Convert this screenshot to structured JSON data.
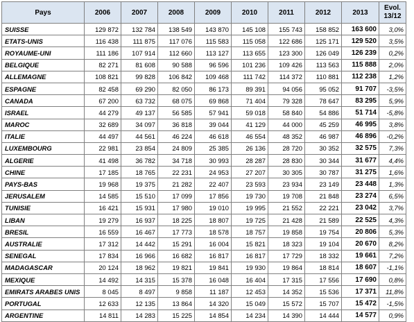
{
  "header": {
    "pays": "Pays",
    "years": [
      "2006",
      "2007",
      "2008",
      "2009",
      "2010",
      "2011",
      "2012",
      "2013"
    ],
    "evol_line1": "Evol.",
    "evol_line2": "13/12"
  },
  "rows": [
    {
      "pays": "SUISSE",
      "values": [
        "129 872",
        "132 784",
        "138 549",
        "143 870",
        "145 108",
        "155 743",
        "158 852",
        "163 600"
      ],
      "evol": "3,0%"
    },
    {
      "pays": "ETATS-UNIS",
      "values": [
        "116 438",
        "111 875",
        "117 076",
        "115 583",
        "115 058",
        "122 686",
        "125 171",
        "129 520"
      ],
      "evol": "3,5%"
    },
    {
      "pays": "ROYAUME-UNI",
      "values": [
        "111 186",
        "107 914",
        "112 660",
        "113 127",
        "113 655",
        "123 300",
        "126 049",
        "126 239"
      ],
      "evol": "0,2%"
    },
    {
      "pays": "BELGIQUE",
      "values": [
        "82 271",
        "81 608",
        "90 588",
        "96 596",
        "101 236",
        "109 426",
        "113 563",
        "115 888"
      ],
      "evol": "2,0%"
    },
    {
      "pays": "ALLEMAGNE",
      "values": [
        "108 821",
        "99 828",
        "106 842",
        "109 468",
        "111 742",
        "114 372",
        "110 881",
        "112 238"
      ],
      "evol": "1,2%"
    },
    {
      "pays": "ESPAGNE",
      "values": [
        "82 458",
        "69 290",
        "82 050",
        "86 173",
        "89 391",
        "94 056",
        "95 052",
        "91 707"
      ],
      "evol": "-3,5%"
    },
    {
      "pays": "CANADA",
      "values": [
        "67 200",
        "63 732",
        "68 075",
        "69 868",
        "71 404",
        "79 328",
        "78 647",
        "83 295"
      ],
      "evol": "5,9%"
    },
    {
      "pays": "ISRAEL",
      "values": [
        "44 279",
        "49 137",
        "56 585",
        "57 941",
        "59 018",
        "58 840",
        "54 886",
        "51 714"
      ],
      "evol": "-5,8%"
    },
    {
      "pays": "MAROC",
      "values": [
        "32 689",
        "34 097",
        "36 818",
        "39 044",
        "41 129",
        "44 000",
        "45 259",
        "46 995"
      ],
      "evol": "3,8%"
    },
    {
      "pays": "ITALIE",
      "values": [
        "44 497",
        "44 561",
        "46 224",
        "46 618",
        "46 554",
        "48 352",
        "46 987",
        "46 896"
      ],
      "evol": "-0,2%"
    },
    {
      "pays": "LUXEMBOURG",
      "values": [
        "22 981",
        "23 854",
        "24 809",
        "25 385",
        "26 136",
        "28 720",
        "30 352",
        "32 575"
      ],
      "evol": "7,3%"
    },
    {
      "pays": "ALGERIE",
      "values": [
        "41 498",
        "36 782",
        "34 718",
        "30 993",
        "28 287",
        "28 830",
        "30 344",
        "31 677"
      ],
      "evol": "4,4%"
    },
    {
      "pays": "CHINE",
      "values": [
        "17 185",
        "18 765",
        "22 231",
        "24 953",
        "27 207",
        "30 305",
        "30 787",
        "31 275"
      ],
      "evol": "1,6%"
    },
    {
      "pays": "PAYS-BAS",
      "values": [
        "19 968",
        "19 375",
        "21 282",
        "22 407",
        "23 593",
        "23 934",
        "23 149",
        "23 448"
      ],
      "evol": "1,3%"
    },
    {
      "pays": "JERUSALEM",
      "values": [
        "14 585",
        "15 510",
        "17 099",
        "17 856",
        "19 730",
        "19 708",
        "21 848",
        "23 274"
      ],
      "evol": "6,5%"
    },
    {
      "pays": "TUNISIE",
      "values": [
        "16 421",
        "15 931",
        "17 980",
        "19 010",
        "19 995",
        "21 552",
        "22 221",
        "23 042"
      ],
      "evol": "3,7%"
    },
    {
      "pays": "LIBAN",
      "values": [
        "19 279",
        "16 937",
        "18 225",
        "18 807",
        "19 725",
        "21 428",
        "21 589",
        "22 525"
      ],
      "evol": "4,3%"
    },
    {
      "pays": "BRESIL",
      "values": [
        "16 559",
        "16 467",
        "17 773",
        "18 578",
        "18 757",
        "19 858",
        "19 754",
        "20 806"
      ],
      "evol": "5,3%"
    },
    {
      "pays": "AUSTRALIE",
      "values": [
        "17 312",
        "14 442",
        "15 291",
        "16 004",
        "15 821",
        "18 323",
        "19 104",
        "20 670"
      ],
      "evol": "8,2%"
    },
    {
      "pays": "SENEGAL",
      "values": [
        "17 834",
        "16 966",
        "16 682",
        "16 817",
        "16 817",
        "17 729",
        "18 332",
        "19 661"
      ],
      "evol": "7,2%"
    },
    {
      "pays": "MADAGASCAR",
      "values": [
        "20 124",
        "18 962",
        "19 821",
        "19 841",
        "19 930",
        "19 864",
        "18 814",
        "18 607"
      ],
      "evol": "-1,1%"
    },
    {
      "pays": "MEXIQUE",
      "values": [
        "14 492",
        "14 315",
        "15 378",
        "16 048",
        "16 404",
        "17 315",
        "17 556",
        "17 690"
      ],
      "evol": "0,8%"
    },
    {
      "pays": "EMIRATS ARABES UNIS",
      "values": [
        "8 045",
        "8 497",
        "9 858",
        "11 187",
        "12 453",
        "14 352",
        "15 536",
        "17 371"
      ],
      "evol": "11,8%"
    },
    {
      "pays": "PORTUGAL",
      "values": [
        "12 633",
        "12 135",
        "13 864",
        "14 320",
        "15 049",
        "15 572",
        "15 707",
        "15 472"
      ],
      "evol": "-1,5%"
    },
    {
      "pays": "ARGENTINE",
      "values": [
        "14 811",
        "14 283",
        "15 225",
        "14 854",
        "14 234",
        "14 390",
        "14 444",
        "14 577"
      ],
      "evol": "0,9%"
    }
  ]
}
